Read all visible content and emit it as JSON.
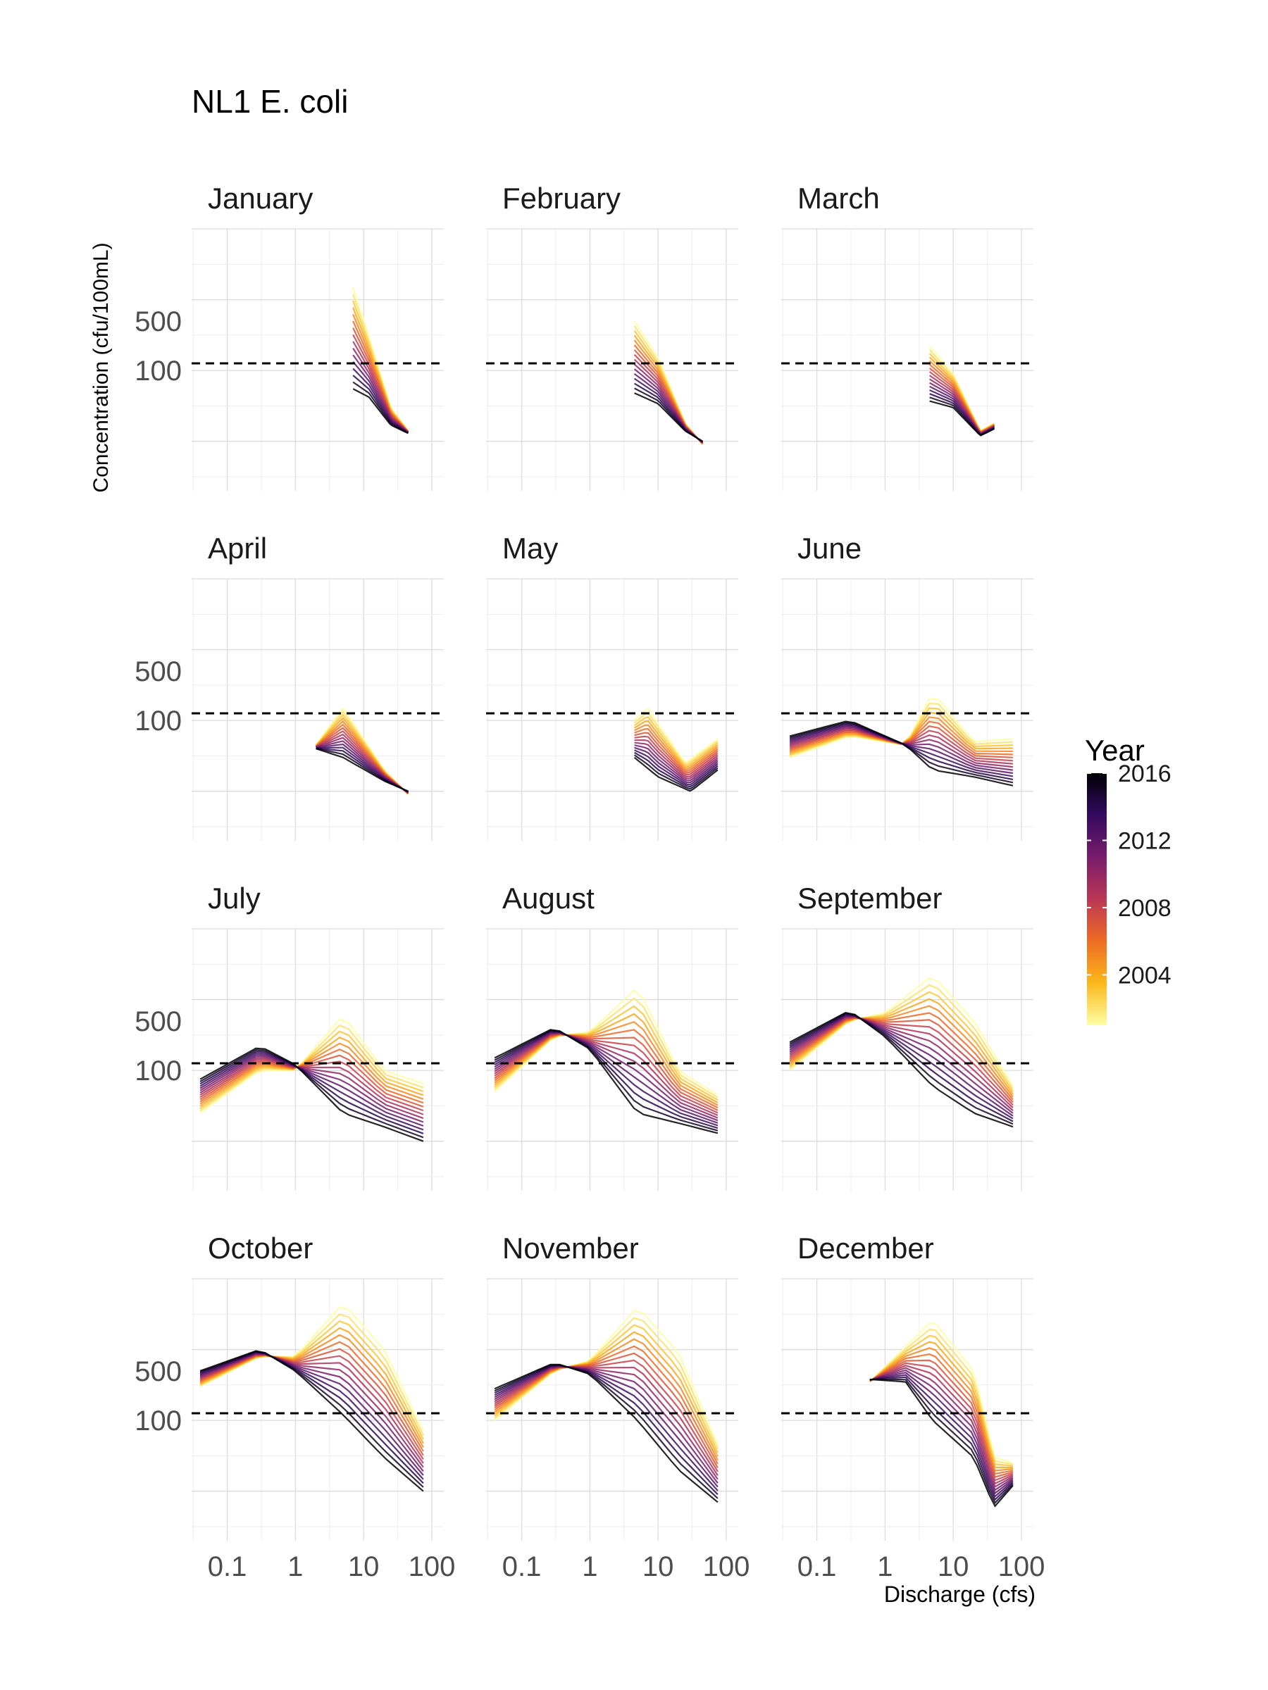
{
  "chart_data": {
    "type": "line",
    "title": "NL1 E. coli",
    "xlabel": "Discharge (cfs)",
    "ylabel": "Concentration (cfu/100mL)",
    "x_scale": "log10",
    "y_scale": "log10",
    "x_range": [
      0.03,
      150
    ],
    "y_range": [
      2,
      10000
    ],
    "x_ticks": [
      0.1,
      1,
      10,
      100
    ],
    "x_tick_labels": [
      "0.1",
      "1",
      "10",
      "100"
    ],
    "y_ticks": [
      100,
      500
    ],
    "y_tick_labels": [
      "100",
      "500"
    ],
    "reference_line": 126,
    "legend": {
      "title": "Year",
      "labels": [
        "2016",
        "2012",
        "2008",
        "2004"
      ],
      "values": [
        2016,
        2012,
        2008,
        2004
      ],
      "range": [
        2001,
        2016
      ],
      "colors": [
        "#000004",
        "#320a5e",
        "#781c6d",
        "#bc3754",
        "#ed6925",
        "#fbb61a",
        "#fcffa4"
      ]
    },
    "years": [
      2001,
      2002,
      2003,
      2004,
      2005,
      2006,
      2007,
      2008,
      2009,
      2010,
      2011,
      2012,
      2013,
      2014,
      2015,
      2016
    ],
    "panels": [
      {
        "label": "January",
        "x_domain": [
          7,
          45
        ],
        "early": [
          [
            7,
            1500
          ],
          [
            12,
            300
          ],
          [
            25,
            30
          ],
          [
            45,
            14
          ]
        ],
        "late": [
          [
            7,
            55
          ],
          [
            12,
            42
          ],
          [
            25,
            17
          ],
          [
            45,
            13
          ]
        ]
      },
      {
        "label": "February",
        "x_domain": [
          4.5,
          45
        ],
        "early": [
          [
            4.5,
            500
          ],
          [
            10,
            150
          ],
          [
            25,
            18
          ],
          [
            45,
            9
          ]
        ],
        "late": [
          [
            4.5,
            48
          ],
          [
            10,
            34
          ],
          [
            25,
            14
          ],
          [
            45,
            10
          ]
        ]
      },
      {
        "label": "March",
        "x_domain": [
          4.5,
          40
        ],
        "early": [
          [
            4.5,
            220
          ],
          [
            10,
            90
          ],
          [
            25,
            14
          ],
          [
            40,
            18
          ]
        ],
        "late": [
          [
            4.5,
            37
          ],
          [
            10,
            30
          ],
          [
            25,
            12
          ],
          [
            40,
            15
          ]
        ]
      },
      {
        "label": "April",
        "x_domain": [
          2,
          45
        ],
        "early": [
          [
            2,
            45
          ],
          [
            5,
            150
          ],
          [
            20,
            20
          ],
          [
            45,
            9
          ]
        ],
        "late": [
          [
            2,
            40
          ],
          [
            5,
            30
          ],
          [
            20,
            14
          ],
          [
            45,
            10
          ]
        ]
      },
      {
        "label": "May",
        "x_domain": [
          4.5,
          75
        ],
        "early": [
          [
            4.5,
            100
          ],
          [
            7,
            150
          ],
          [
            25,
            25
          ],
          [
            75,
            55
          ]
        ],
        "late": [
          [
            4.5,
            30
          ],
          [
            10,
            16
          ],
          [
            30,
            10
          ],
          [
            75,
            20
          ]
        ]
      },
      {
        "label": "June",
        "x_domain": [
          0.04,
          75
        ],
        "early": [
          [
            0.04,
            30
          ],
          [
            0.3,
            60
          ],
          [
            2,
            45
          ],
          [
            5,
            250
          ],
          [
            20,
            50
          ],
          [
            75,
            55
          ]
        ],
        "late": [
          [
            0.04,
            60
          ],
          [
            0.3,
            100
          ],
          [
            2,
            45
          ],
          [
            5,
            20
          ],
          [
            20,
            16
          ],
          [
            75,
            12
          ]
        ]
      },
      {
        "label": "July",
        "x_domain": [
          0.04,
          75
        ],
        "early": [
          [
            0.04,
            25
          ],
          [
            0.3,
            100
          ],
          [
            1,
            100
          ],
          [
            5,
            600
          ],
          [
            20,
            100
          ],
          [
            75,
            65
          ]
        ],
        "late": [
          [
            0.04,
            75
          ],
          [
            0.3,
            220
          ],
          [
            1,
            120
          ],
          [
            5,
            25
          ],
          [
            20,
            16
          ],
          [
            75,
            10
          ]
        ]
      },
      {
        "label": "August",
        "x_domain": [
          0.04,
          75
        ],
        "early": [
          [
            0.04,
            50
          ],
          [
            0.3,
            300
          ],
          [
            1,
            350
          ],
          [
            5,
            1500
          ],
          [
            20,
            100
          ],
          [
            75,
            45
          ]
        ],
        "late": [
          [
            0.04,
            150
          ],
          [
            0.3,
            400
          ],
          [
            1,
            200
          ],
          [
            5,
            25
          ],
          [
            20,
            18
          ],
          [
            75,
            13
          ]
        ]
      },
      {
        "label": "September",
        "x_domain": [
          0.04,
          75
        ],
        "early": [
          [
            0.04,
            100
          ],
          [
            0.3,
            500
          ],
          [
            1,
            650
          ],
          [
            5,
            2200
          ],
          [
            20,
            500
          ],
          [
            75,
            60
          ]
        ],
        "late": [
          [
            0.04,
            250
          ],
          [
            0.3,
            700
          ],
          [
            1,
            300
          ],
          [
            5,
            60
          ],
          [
            20,
            25
          ],
          [
            75,
            16
          ]
        ]
      },
      {
        "label": "October",
        "x_domain": [
          0.04,
          75
        ],
        "early": [
          [
            0.04,
            300
          ],
          [
            0.3,
            800
          ],
          [
            1,
            800
          ],
          [
            5,
            4500
          ],
          [
            20,
            1000
          ],
          [
            75,
            70
          ]
        ],
        "late": [
          [
            0.04,
            500
          ],
          [
            0.3,
            1000
          ],
          [
            1,
            500
          ],
          [
            5,
            120
          ],
          [
            20,
            30
          ],
          [
            75,
            10
          ]
        ]
      },
      {
        "label": "November",
        "x_domain": [
          0.04,
          75
        ],
        "early": [
          [
            0.04,
            100
          ],
          [
            0.3,
            500
          ],
          [
            1,
            700
          ],
          [
            5,
            4000
          ],
          [
            20,
            900
          ],
          [
            75,
            45
          ]
        ],
        "late": [
          [
            0.04,
            280
          ],
          [
            0.3,
            650
          ],
          [
            1,
            450
          ],
          [
            5,
            100
          ],
          [
            20,
            20
          ],
          [
            75,
            7
          ]
        ]
      },
      {
        "label": "December",
        "x_domain": [
          0.6,
          75
        ],
        "early": [
          [
            0.6,
            350
          ],
          [
            5,
            2600
          ],
          [
            20,
            500
          ],
          [
            40,
            30
          ],
          [
            75,
            25
          ]
        ],
        "late": [
          [
            0.6,
            380
          ],
          [
            2,
            350
          ],
          [
            5,
            100
          ],
          [
            20,
            30
          ],
          [
            40,
            6
          ],
          [
            75,
            12
          ]
        ]
      }
    ]
  }
}
